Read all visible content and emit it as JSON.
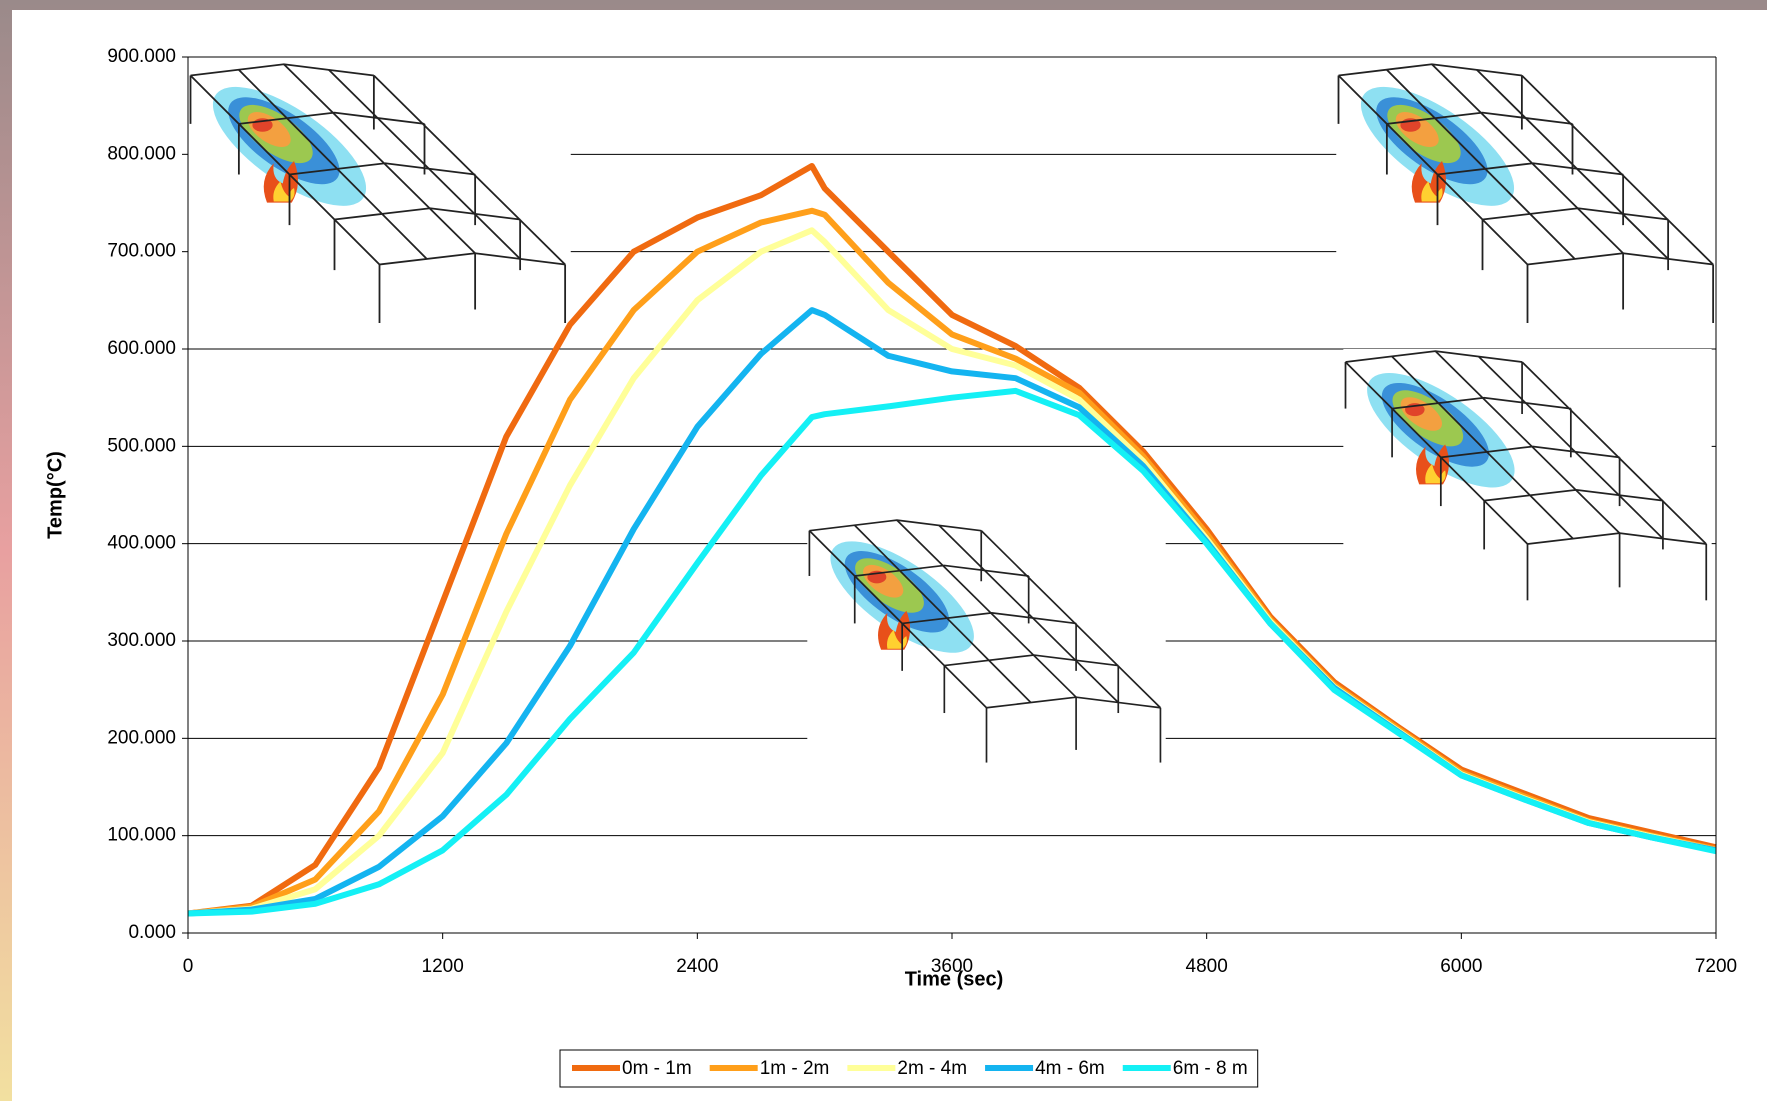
{
  "chart_data": {
    "type": "line",
    "x_label": "Time (sec)",
    "y_label": "Temp(°C)",
    "x": [
      0,
      300,
      600,
      900,
      1200,
      1500,
      1800,
      2100,
      2400,
      2700,
      2940,
      3000,
      3300,
      3600,
      3900,
      4200,
      4500,
      4800,
      5100,
      5400,
      5700,
      6000,
      6300,
      6600,
      6900,
      7200
    ],
    "series": [
      {
        "name": "0m - 1m",
        "color": "#f06a10",
        "values": [
          20,
          28,
          70,
          170,
          340,
          510,
          625,
          700,
          735,
          758,
          788,
          765,
          700,
          635,
          603,
          560,
          495,
          415,
          325,
          258,
          212,
          168,
          143,
          118,
          103,
          88
        ]
      },
      {
        "name": "1m - 2m",
        "color": "#ff9f1a",
        "values": [
          20,
          27,
          55,
          125,
          245,
          410,
          548,
          640,
          700,
          730,
          742,
          738,
          668,
          615,
          590,
          555,
          490,
          410,
          322,
          255,
          210,
          165,
          140,
          115,
          100,
          86
        ]
      },
      {
        "name": "2m - 4m",
        "color": "#ffff99",
        "values": [
          20,
          25,
          45,
          100,
          185,
          330,
          460,
          570,
          650,
          700,
          722,
          710,
          640,
          600,
          583,
          548,
          485,
          405,
          320,
          253,
          208,
          163,
          138,
          114,
          99,
          85
        ]
      },
      {
        "name": "4m - 6m",
        "color": "#14b4f0",
        "values": [
          20,
          24,
          35,
          68,
          120,
          195,
          295,
          415,
          520,
          595,
          640,
          635,
          593,
          577,
          570,
          540,
          480,
          402,
          318,
          252,
          207,
          162,
          137,
          113,
          98,
          85
        ]
      },
      {
        "name": "6m - 8 m",
        "color": "#14f0f5",
        "values": [
          20,
          22,
          30,
          50,
          85,
          142,
          220,
          288,
          380,
          470,
          530,
          533,
          541,
          550,
          557,
          532,
          475,
          400,
          318,
          250,
          206,
          162,
          137,
          113,
          98,
          84
        ]
      }
    ],
    "xlim": [
      0,
      7200
    ],
    "xticks": [
      0,
      1200,
      2400,
      3600,
      4800,
      6000,
      7200
    ],
    "ylim": [
      0,
      900
    ],
    "yticks": [
      {
        "value": 0,
        "label": "0.000"
      },
      {
        "value": 100,
        "label": "100.000"
      },
      {
        "value": 200,
        "label": "200.000"
      },
      {
        "value": 300,
        "label": "300.000"
      },
      {
        "value": 400,
        "label": "400.000"
      },
      {
        "value": 500,
        "label": "500.000"
      },
      {
        "value": 600,
        "label": "600.000"
      },
      {
        "value": 700,
        "label": "700.000"
      },
      {
        "value": 800,
        "label": "800.000"
      },
      {
        "value": 900,
        "label": "900.000"
      }
    ],
    "grid": true,
    "legend": "bottom"
  }
}
